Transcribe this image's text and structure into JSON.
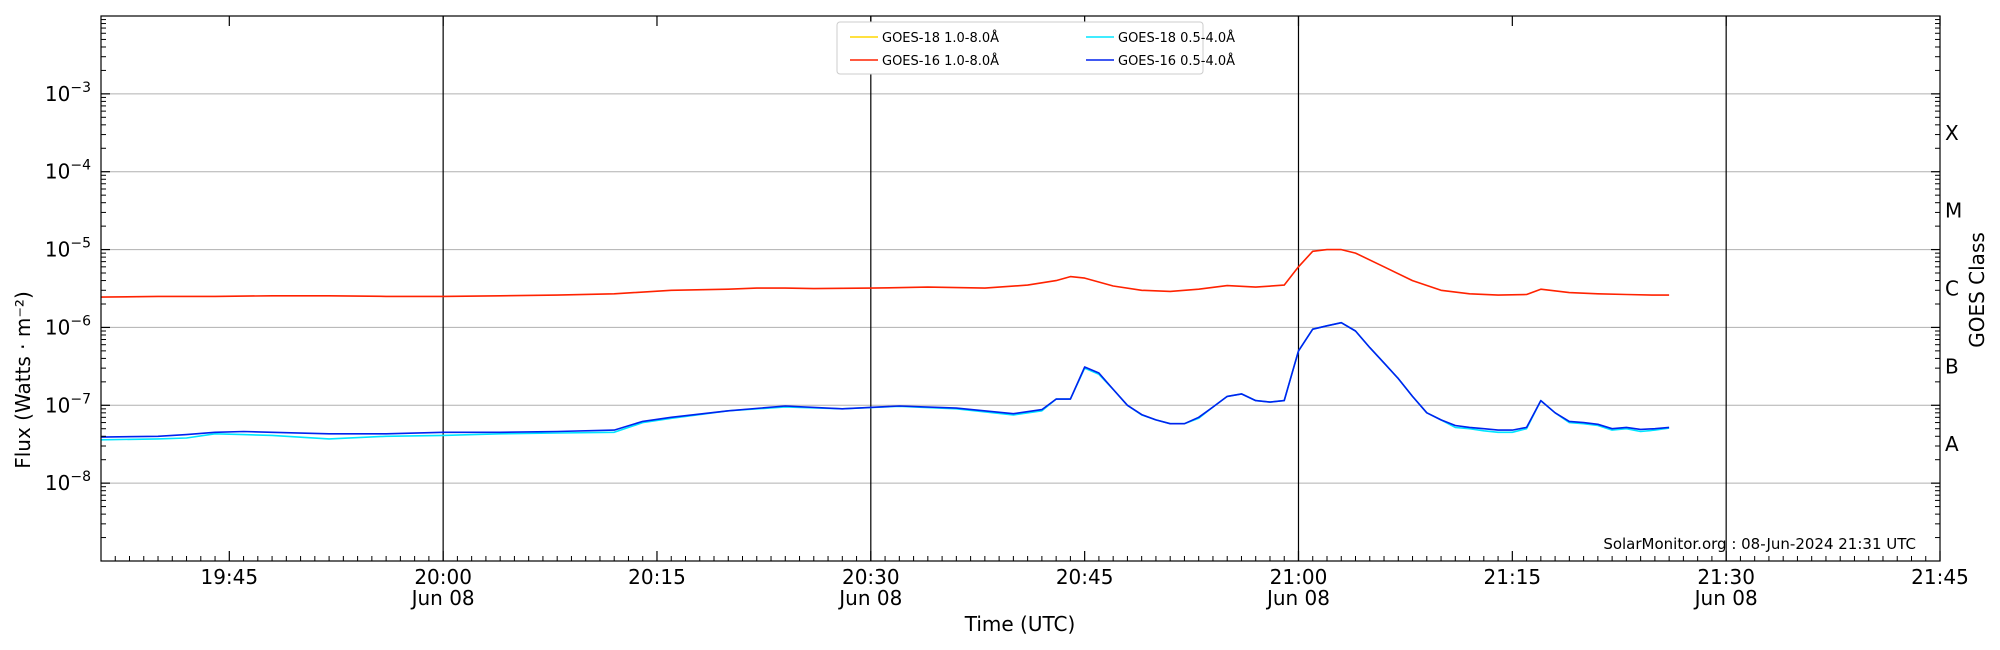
{
  "chart_data": {
    "type": "line",
    "title": "",
    "xlabel": "Time (UTC)",
    "ylabel": "Flux (Watts · m⁻²)",
    "ylabel_right": "GOES Class",
    "yscale": "log",
    "ylim": [
      1e-09,
      0.01
    ],
    "x_unit": "minutes after 19:40 UTC, 08-Jun-2024",
    "xlim": [
      -4,
      125
    ],
    "x_ticks": [
      {
        "t": 5,
        "label": "19:45",
        "sublabel": ""
      },
      {
        "t": 20,
        "label": "20:00",
        "sublabel": "Jun 08"
      },
      {
        "t": 35,
        "label": "20:15",
        "sublabel": ""
      },
      {
        "t": 50,
        "label": "20:30",
        "sublabel": "Jun 08"
      },
      {
        "t": 65,
        "label": "20:45",
        "sublabel": ""
      },
      {
        "t": 80,
        "label": "21:00",
        "sublabel": "Jun 08"
      },
      {
        "t": 95,
        "label": "21:15",
        "sublabel": ""
      },
      {
        "t": 110,
        "label": "21:30",
        "sublabel": "Jun 08"
      },
      {
        "t": 125,
        "label": "21:45",
        "sublabel": ""
      }
    ],
    "day_lines": [
      20,
      50,
      80,
      110
    ],
    "y_ticks": [
      {
        "exp": -8,
        "base": "10",
        "sup": "−8"
      },
      {
        "exp": -7,
        "base": "10",
        "sup": "−7"
      },
      {
        "exp": -6,
        "base": "10",
        "sup": "−6"
      },
      {
        "exp": -5,
        "base": "10",
        "sup": "−5"
      },
      {
        "exp": -4,
        "base": "10",
        "sup": "−4"
      },
      {
        "exp": -3,
        "base": "10",
        "sup": "−3"
      }
    ],
    "gridlines_y": [
      -8,
      -7,
      -6,
      -5,
      -4,
      -3
    ],
    "goes_classes": [
      {
        "label": "A",
        "exp": -7.5
      },
      {
        "label": "B",
        "exp": -6.5
      },
      {
        "label": "C",
        "exp": -5.5
      },
      {
        "label": "M",
        "exp": -4.5
      },
      {
        "label": "X",
        "exp": -3.5
      }
    ],
    "legend_position": "top-center",
    "series": [
      {
        "name": "GOES-18 1.0-8.0Å",
        "color": "#ffd700",
        "x": [],
        "y": []
      },
      {
        "name": "GOES-16 1.0-8.0Å",
        "color": "#ff2200",
        "x": [
          -4,
          0,
          4,
          8,
          12,
          16,
          20,
          24,
          28,
          32,
          36,
          40,
          42,
          44,
          46,
          50,
          54,
          58,
          61,
          63,
          64,
          65,
          67,
          69,
          71,
          73,
          75,
          77,
          79,
          80,
          81,
          82,
          83,
          84,
          86,
          88,
          90,
          92,
          94,
          96,
          97,
          99,
          101,
          103,
          105,
          106
        ],
        "y": [
          2.45e-06,
          2.5e-06,
          2.5e-06,
          2.55e-06,
          2.55e-06,
          2.5e-06,
          2.5e-06,
          2.55e-06,
          2.6e-06,
          2.7e-06,
          3e-06,
          3.1e-06,
          3.2e-06,
          3.2e-06,
          3.15e-06,
          3.2e-06,
          3.3e-06,
          3.2e-06,
          3.5e-06,
          4e-06,
          4.5e-06,
          4.3e-06,
          3.4e-06,
          3e-06,
          2.9e-06,
          3.1e-06,
          3.45e-06,
          3.3e-06,
          3.5e-06,
          6e-06,
          9.5e-06,
          1e-05,
          1e-05,
          9e-06,
          6e-06,
          4e-06,
          3e-06,
          2.7e-06,
          2.6e-06,
          2.65e-06,
          3.1e-06,
          2.8e-06,
          2.7e-06,
          2.65e-06,
          2.6e-06,
          2.6e-06
        ]
      },
      {
        "name": "GOES-18 0.5-4.0Å",
        "color": "#00e5ff",
        "x": [
          -4,
          0,
          2,
          4,
          6,
          8,
          12,
          16,
          20,
          24,
          28,
          32,
          34,
          36,
          40,
          44,
          48,
          52,
          56,
          60,
          62,
          63,
          64,
          65,
          66,
          67,
          68,
          69,
          70,
          71,
          72,
          73,
          74,
          75,
          76,
          77,
          78,
          79,
          80,
          81,
          82,
          83,
          84,
          85,
          86,
          87,
          88,
          89,
          90,
          91,
          92,
          93,
          94,
          95,
          96,
          97,
          98,
          99,
          100,
          101,
          102,
          103,
          104,
          105,
          106
        ],
        "y": [
          3.6e-08,
          3.7e-08,
          3.8e-08,
          4.3e-08,
          4.2e-08,
          4.1e-08,
          3.7e-08,
          4e-08,
          4.1e-08,
          4.3e-08,
          4.4e-08,
          4.5e-08,
          6e-08,
          6.8e-08,
          8.5e-08,
          9.5e-08,
          9e-08,
          9.7e-08,
          9e-08,
          7.5e-08,
          8.5e-08,
          1.2e-07,
          1.2e-07,
          3e-07,
          2.5e-07,
          1.6e-07,
          1e-07,
          7.5e-08,
          6.5e-08,
          5.8e-08,
          5.8e-08,
          6.8e-08,
          9.5e-08,
          1.3e-07,
          1.4e-07,
          1.15e-07,
          1.1e-07,
          1.15e-07,
          5e-07,
          9.5e-07,
          1.05e-06,
          1.15e-06,
          9e-07,
          5.5e-07,
          3.5e-07,
          2.2e-07,
          1.3e-07,
          8e-08,
          6.5e-08,
          5.2e-08,
          5e-08,
          4.7e-08,
          4.5e-08,
          4.5e-08,
          5e-08,
          1.15e-07,
          8e-08,
          6e-08,
          5.8e-08,
          5.5e-08,
          4.8e-08,
          5e-08,
          4.6e-08,
          4.8e-08,
          5.1e-08
        ]
      },
      {
        "name": "GOES-16 0.5-4.0Å",
        "color": "#0022ee",
        "x": [
          -4,
          0,
          2,
          4,
          6,
          8,
          12,
          16,
          20,
          24,
          28,
          32,
          34,
          36,
          40,
          44,
          48,
          52,
          56,
          60,
          62,
          63,
          64,
          65,
          66,
          67,
          68,
          69,
          70,
          71,
          72,
          73,
          74,
          75,
          76,
          77,
          78,
          79,
          80,
          81,
          82,
          83,
          84,
          85,
          86,
          87,
          88,
          89,
          90,
          91,
          92,
          93,
          94,
          95,
          96,
          97,
          98,
          99,
          100,
          101,
          102,
          103,
          104,
          105,
          106
        ],
        "y": [
          3.9e-08,
          4e-08,
          4.2e-08,
          4.5e-08,
          4.6e-08,
          4.5e-08,
          4.3e-08,
          4.3e-08,
          4.5e-08,
          4.5e-08,
          4.6e-08,
          4.8e-08,
          6.2e-08,
          7e-08,
          8.5e-08,
          9.8e-08,
          9e-08,
          9.8e-08,
          9.2e-08,
          7.8e-08,
          8.8e-08,
          1.2e-07,
          1.2e-07,
          3.1e-07,
          2.6e-07,
          1.6e-07,
          1e-07,
          7.6e-08,
          6.5e-08,
          5.8e-08,
          5.8e-08,
          7e-08,
          9.5e-08,
          1.3e-07,
          1.4e-07,
          1.15e-07,
          1.1e-07,
          1.15e-07,
          5e-07,
          9.5e-07,
          1.05e-06,
          1.15e-06,
          9e-07,
          5.5e-07,
          3.5e-07,
          2.2e-07,
          1.3e-07,
          8e-08,
          6.5e-08,
          5.5e-08,
          5.2e-08,
          5e-08,
          4.8e-08,
          4.8e-08,
          5.2e-08,
          1.15e-07,
          8e-08,
          6.2e-08,
          6e-08,
          5.7e-08,
          5e-08,
          5.2e-08,
          4.9e-08,
          5e-08,
          5.2e-08
        ]
      }
    ],
    "annotation": "SolarMonitor.org : 08-Jun-2024 21:31 UTC"
  }
}
